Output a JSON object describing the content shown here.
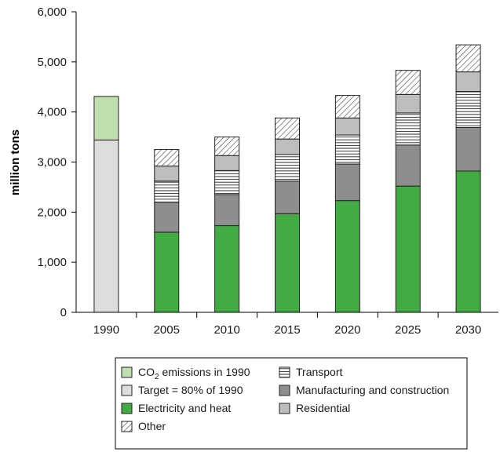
{
  "chart_data": {
    "type": "bar",
    "stacked": true,
    "ylabel": "million tons",
    "ylim": [
      0,
      6000
    ],
    "yticks": [
      "0",
      "1,000",
      "2,000",
      "3,000",
      "4,000",
      "5,000",
      "6,000"
    ],
    "ytick_values": [
      0,
      1000,
      2000,
      3000,
      4000,
      5000,
      6000
    ],
    "categories": [
      "1990",
      "2005",
      "2010",
      "2015",
      "2020",
      "2025",
      "2030"
    ],
    "series": [
      {
        "key": "target",
        "name": "Target = 80% of 1990",
        "color": "#dddddd",
        "pattern": "solid",
        "values": [
          3440,
          null,
          null,
          null,
          null,
          null,
          null
        ]
      },
      {
        "key": "co2",
        "name": "CO2 emissions in 1990",
        "color": "#bfe0ae",
        "pattern": "solid",
        "values": [
          870,
          null,
          null,
          null,
          null,
          null,
          null
        ]
      },
      {
        "key": "elec",
        "name": "Electricity and heat",
        "color": "#43ab43",
        "pattern": "solid",
        "values": [
          null,
          1600,
          1730,
          1970,
          2230,
          2520,
          2820
        ]
      },
      {
        "key": "mfg",
        "name": "Manufacturing and construction",
        "color": "#8e8e8e",
        "pattern": "solid",
        "values": [
          null,
          600,
          620,
          650,
          730,
          820,
          870
        ]
      },
      {
        "key": "transport",
        "name": "Transport",
        "color": "#ffffff",
        "pattern": "horizontal-lines",
        "values": [
          null,
          420,
          480,
          530,
          580,
          640,
          720
        ]
      },
      {
        "key": "res",
        "name": "Residential",
        "color": "#bdbdbd",
        "pattern": "solid",
        "values": [
          null,
          300,
          300,
          310,
          340,
          370,
          390
        ]
      },
      {
        "key": "other",
        "name": "Other",
        "color": "#ffffff",
        "pattern": "diagonal-hatch",
        "values": [
          null,
          330,
          370,
          420,
          450,
          480,
          540
        ]
      }
    ],
    "legend": {
      "placement": "bottom",
      "left_column": [
        {
          "key": "co2",
          "label_main": "CO",
          "label_sub": "2",
          "label_rest": " emissions in 1990"
        },
        {
          "key": "target",
          "label": "Target = 80% of 1990"
        },
        {
          "key": "elec",
          "label": "Electricity and heat"
        },
        {
          "key": "other",
          "label": "Other"
        }
      ],
      "right_column": [
        {
          "key": "transport",
          "label": "Transport"
        },
        {
          "key": "mfg",
          "label": "Manufacturing and construction"
        },
        {
          "key": "res",
          "label": "Residential"
        }
      ]
    },
    "grid": false
  }
}
